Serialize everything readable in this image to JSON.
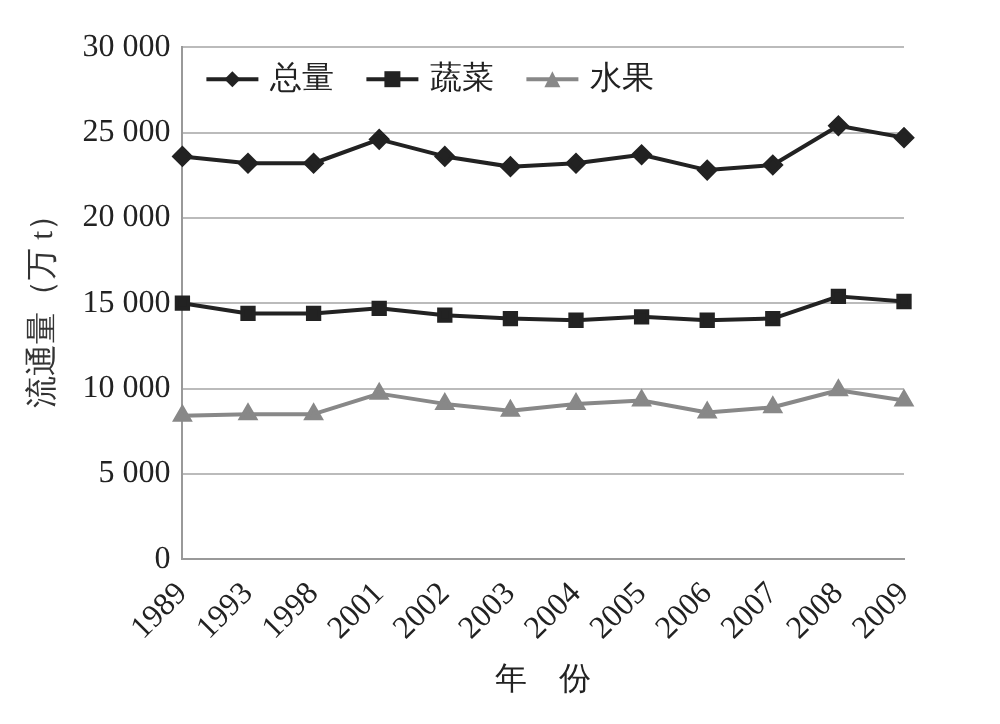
{
  "chart_data": {
    "type": "line",
    "xlabel": "年　份",
    "ylabel": "流通量（万 t）",
    "categories": [
      "1989",
      "1993",
      "1998",
      "2001",
      "2002",
      "2003",
      "2004",
      "2005",
      "2006",
      "2007",
      "2008",
      "2009"
    ],
    "series": [
      {
        "name": "总量",
        "color": "#222222",
        "marker": "diamond",
        "values": [
          23600,
          23200,
          23200,
          24600,
          23600,
          23000,
          23200,
          23700,
          22800,
          23100,
          25400,
          24700
        ]
      },
      {
        "name": "蔬菜",
        "color": "#222222",
        "marker": "square",
        "values": [
          15000,
          14400,
          14400,
          14700,
          14300,
          14100,
          14000,
          14200,
          14000,
          14100,
          15400,
          15100
        ]
      },
      {
        "name": "水果",
        "color": "#888888",
        "marker": "triangle",
        "values": [
          8400,
          8500,
          8500,
          9700,
          9100,
          8700,
          9100,
          9300,
          8600,
          8900,
          9900,
          9300
        ]
      }
    ],
    "ylim": [
      0,
      30000
    ],
    "yticks": [
      {
        "value": 0,
        "label": "0"
      },
      {
        "value": 5000,
        "label": "5 000"
      },
      {
        "value": 10000,
        "label": "10 000"
      },
      {
        "value": 15000,
        "label": "15 000"
      },
      {
        "value": 20000,
        "label": "20 000"
      },
      {
        "value": 25000,
        "label": "25 000"
      },
      {
        "value": 30000,
        "label": "30 000"
      }
    ],
    "grid": "y",
    "legend": "top left",
    "line_style": "solid"
  }
}
